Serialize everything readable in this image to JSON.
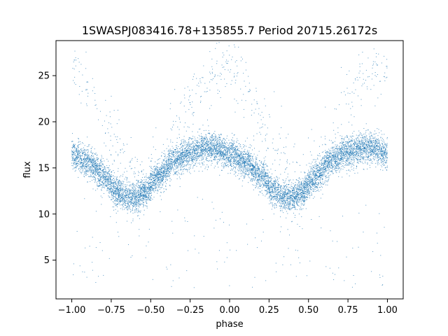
{
  "chart_data": {
    "type": "scatter",
    "title": "1SWASPJ083416.78+135855.7 Period 20715.26172s",
    "xlabel": "phase",
    "ylabel": "flux",
    "xlim": [
      -1.1,
      1.1
    ],
    "ylim": [
      0.8,
      28.8
    ],
    "xticks": [
      -1.0,
      -0.75,
      -0.5,
      -0.25,
      0.0,
      0.25,
      0.5,
      0.75,
      1.0
    ],
    "xtick_labels": [
      "−1.00",
      "−0.75",
      "−0.50",
      "−0.25",
      "0.00",
      "0.25",
      "0.50",
      "0.75",
      "1.00"
    ],
    "yticks": [
      5,
      10,
      15,
      20,
      25
    ],
    "ytick_labels": [
      "5",
      "10",
      "15",
      "20",
      "25"
    ],
    "grid": false,
    "point_color": "#1f77b4",
    "series": [
      {
        "curve_phase": [
          -1.0,
          -0.9,
          -0.8,
          -0.72,
          -0.65,
          -0.6,
          -0.55,
          -0.45,
          -0.35,
          -0.25,
          -0.15,
          -0.08,
          0.0,
          0.1,
          0.2,
          0.28,
          0.35,
          0.4,
          0.45,
          0.55,
          0.65,
          0.75,
          0.85,
          0.92,
          1.0
        ],
        "curve_flux": [
          16.5,
          15.6,
          14.2,
          12.5,
          11.8,
          11.8,
          12.3,
          14.0,
          15.8,
          16.7,
          17.2,
          17.1,
          16.5,
          15.6,
          14.2,
          12.5,
          11.8,
          11.8,
          12.3,
          14.0,
          15.8,
          16.7,
          17.2,
          17.1,
          16.5
        ],
        "scatter_width": 0.8,
        "n_points": 9000
      },
      {
        "curve_phase": [
          -1.0,
          -0.9,
          -0.75,
          -0.65,
          -0.55,
          -0.45,
          -0.35,
          -0.25,
          -0.15,
          -0.05,
          0.0,
          0.1,
          0.25,
          0.35,
          0.45,
          0.55,
          0.65,
          0.75,
          0.85,
          0.95,
          1.0
        ],
        "curve_flux": [
          26.3,
          24.0,
          19.0,
          15.5,
          13.5,
          15.5,
          19.0,
          22.0,
          24.5,
          26.0,
          26.3,
          24.0,
          19.0,
          15.5,
          13.5,
          15.5,
          19.0,
          22.0,
          24.5,
          26.0,
          26.3
        ],
        "scatter_width": 1.8,
        "n_points": 600
      },
      {
        "scatter_flux_range": [
          2.0,
          12.0
        ],
        "n_points": 150
      }
    ]
  }
}
